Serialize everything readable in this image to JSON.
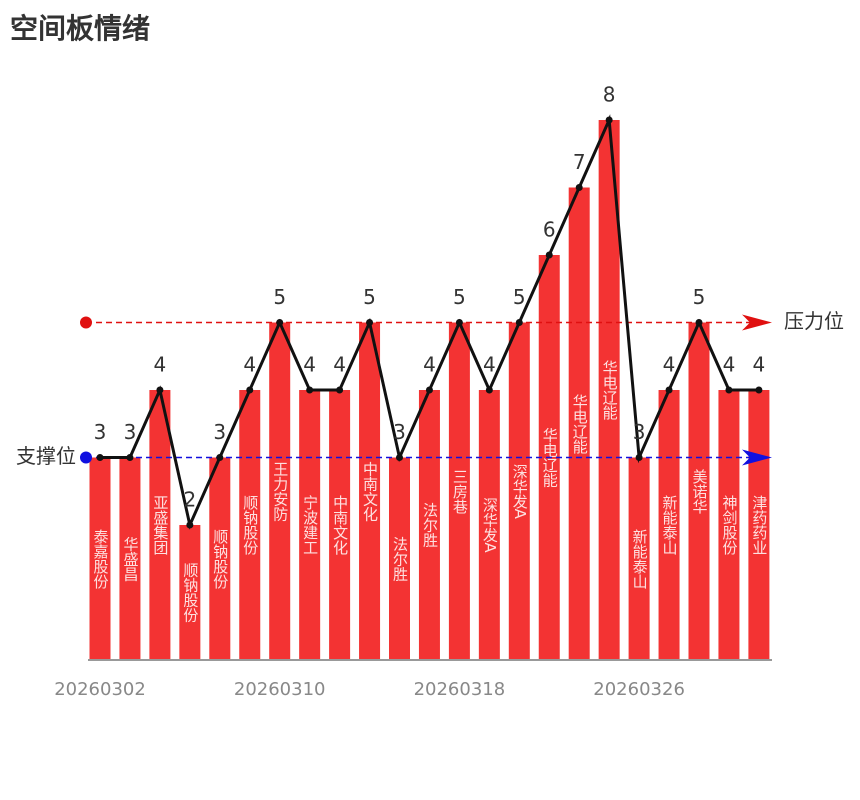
{
  "chart_data": {
    "type": "bar",
    "title": "空间板情绪",
    "categories": [
      "20260302",
      null,
      null,
      null,
      null,
      null,
      "20260310",
      null,
      null,
      null,
      null,
      null,
      "20260318",
      null,
      null,
      null,
      null,
      null,
      "20260326",
      null,
      null,
      null,
      null
    ],
    "bar_labels": [
      "泰嘉股份",
      "华盛昌",
      "亚盛集团",
      "顺钠股份",
      "顺钠股份",
      "顺钠股份",
      "王力安防",
      "宁波建工",
      "中南文化",
      "中南文化",
      "法尔胜",
      "法尔胜",
      "三房巷",
      "深华发A",
      "深华发A",
      "华电辽能",
      "华电辽能",
      "华电辽能",
      "新能泰山",
      "新能泰山",
      "美诺华",
      "神剑股份",
      "津药药业"
    ],
    "values": [
      3,
      3,
      4,
      2,
      3,
      4,
      5,
      4,
      4,
      5,
      3,
      4,
      5,
      4,
      5,
      6,
      7,
      8,
      3,
      4,
      5,
      4,
      4
    ],
    "color": "#f33333",
    "line_color": "#111111",
    "ylim": [
      0,
      8
    ],
    "reference_lines": [
      {
        "name": "压力位",
        "value": 5,
        "color": "#e01010",
        "side": "right"
      },
      {
        "name": "支撑位",
        "value": 3,
        "color": "#1010e0",
        "side": "left"
      }
    ]
  }
}
